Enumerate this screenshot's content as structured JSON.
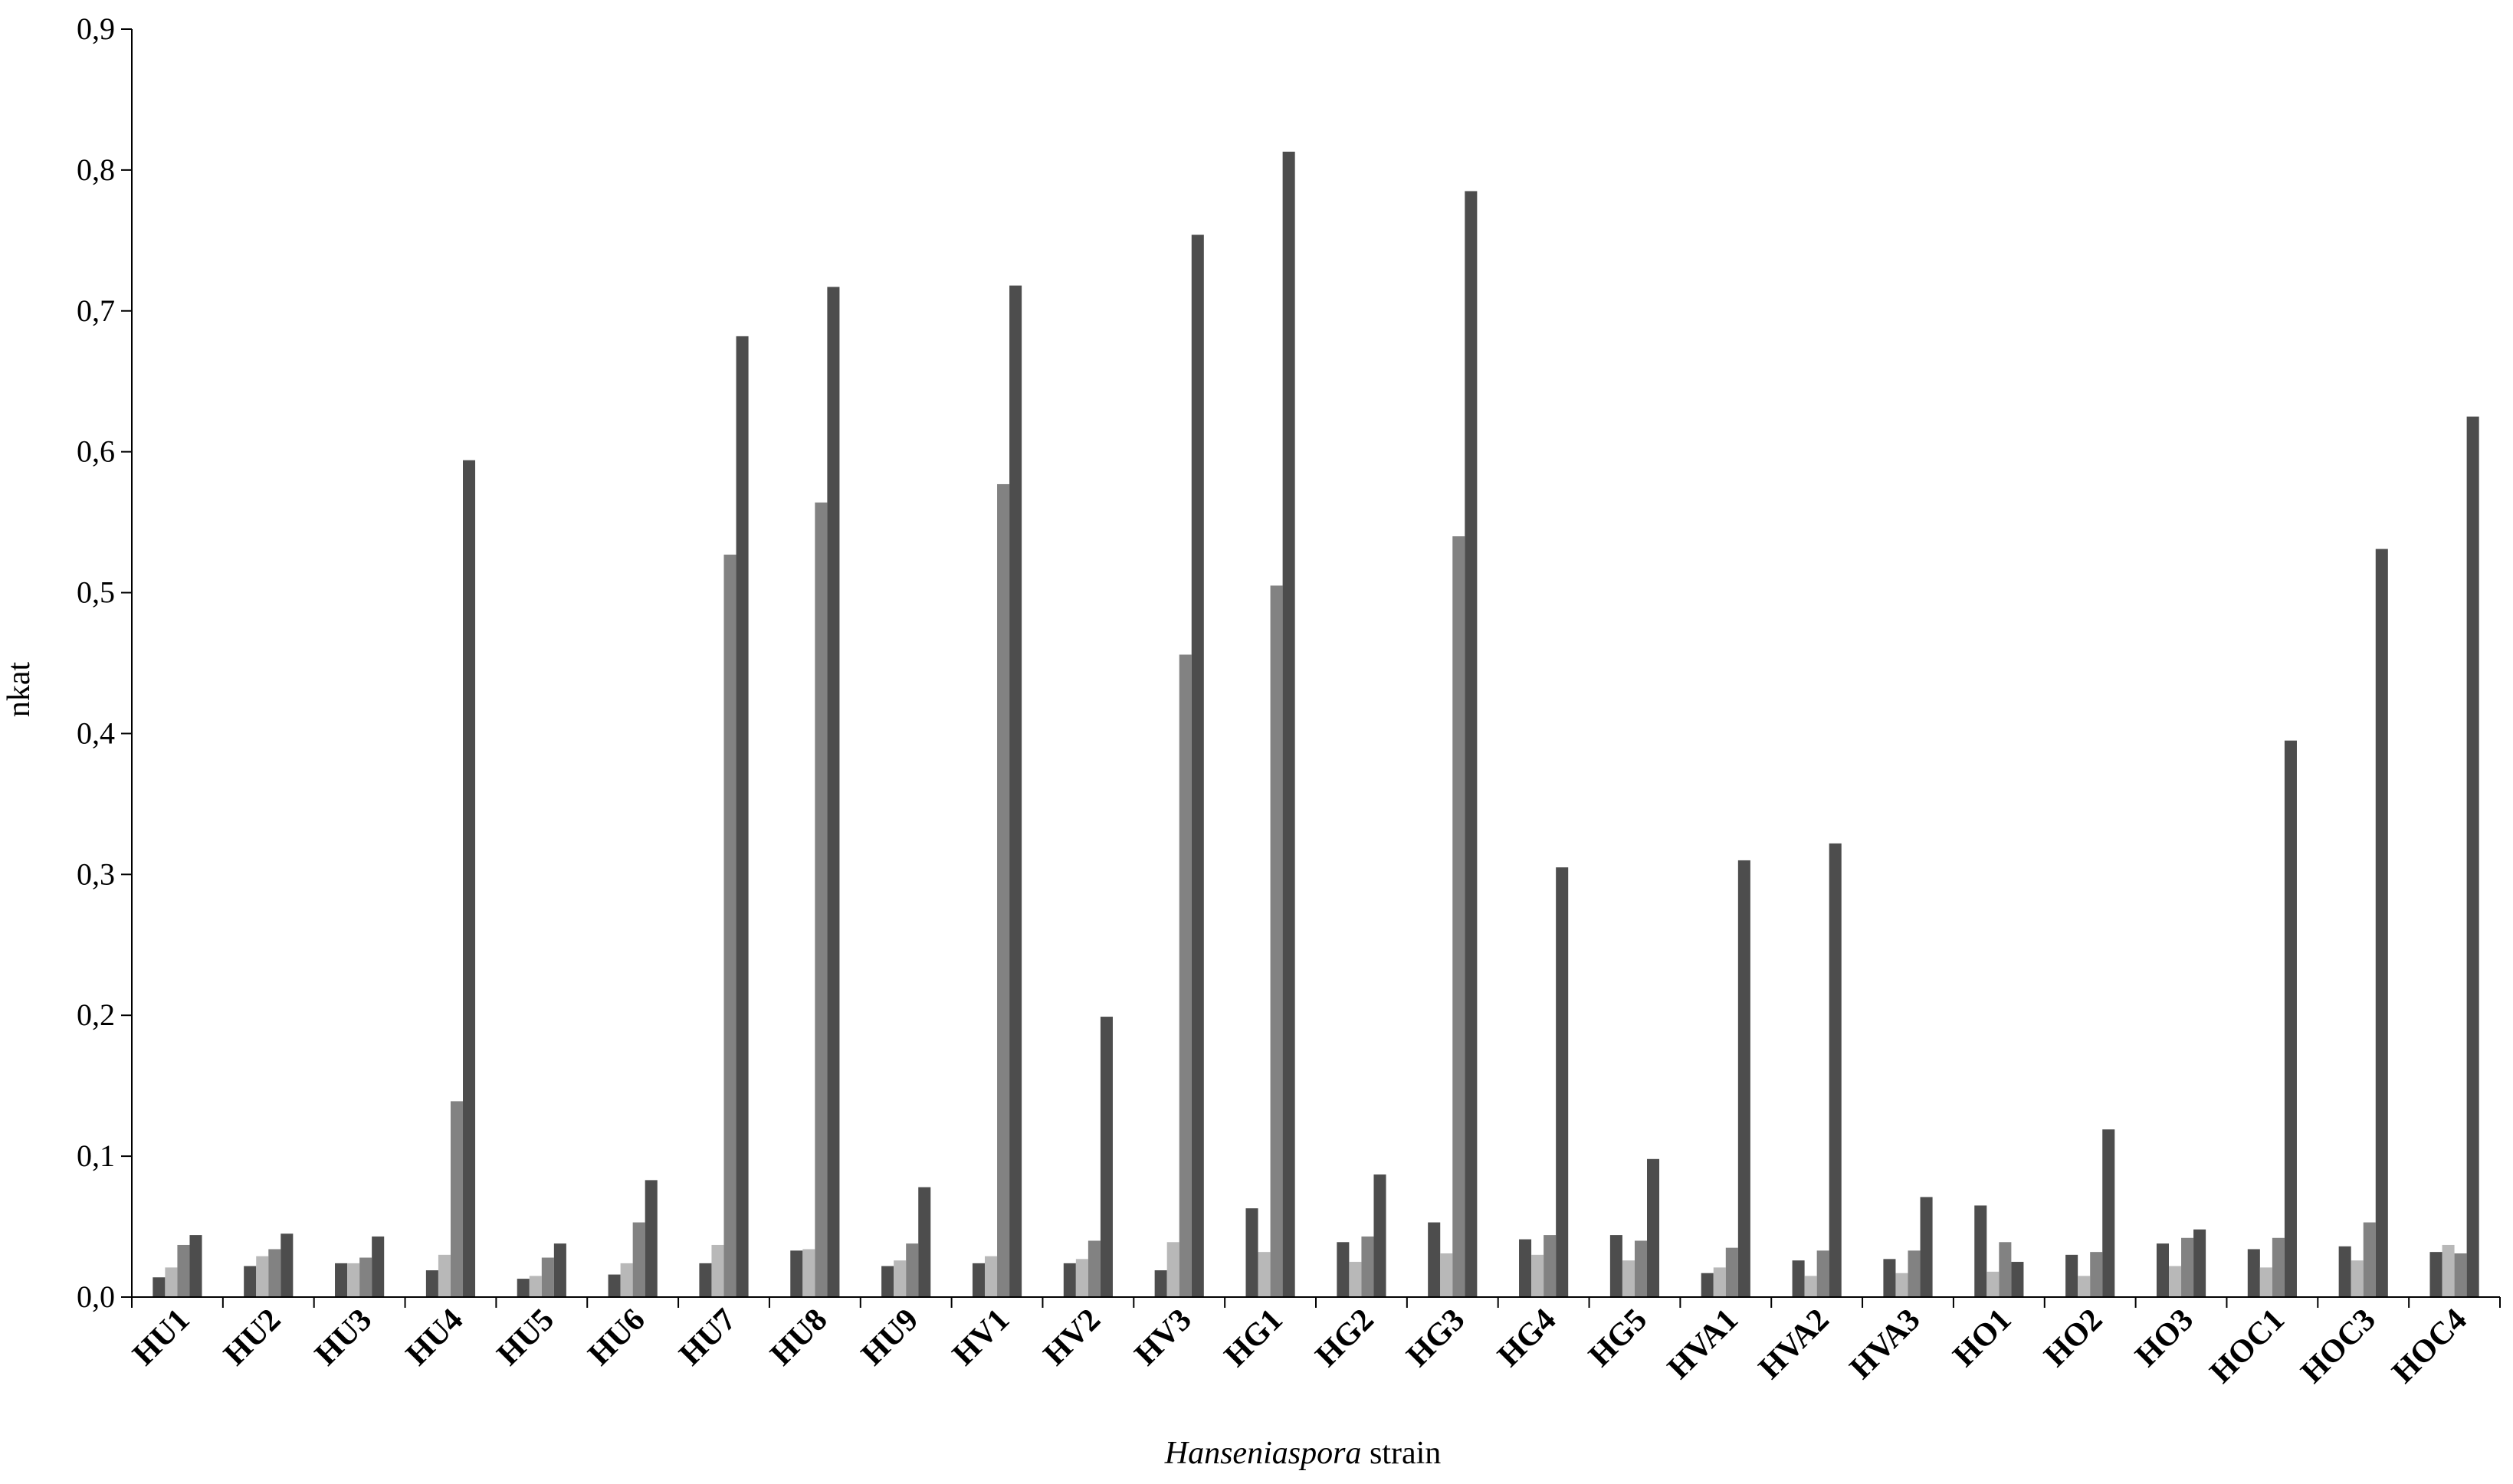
{
  "chart_data": {
    "type": "bar",
    "ylabel": "nkat",
    "xlabel_italic": "Hanseniaspora",
    "xlabel_rest": " strain",
    "ylim": [
      0,
      0.9
    ],
    "yticks": [
      "0,0",
      "0,1",
      "0,2",
      "0,3",
      "0,4",
      "0,5",
      "0,6",
      "0,7",
      "0,8",
      "0,9"
    ],
    "grid": false,
    "categories": [
      "HU1",
      "HU2",
      "HU3",
      "HU4",
      "HU5",
      "HU6",
      "HU7",
      "HU8",
      "HU9",
      "HV1",
      "HV2",
      "HV3",
      "HG1",
      "HG2",
      "HG3",
      "HG4",
      "HG5",
      "HVA1",
      "HVA2",
      "HVA3",
      "HO1",
      "HO2",
      "HO3",
      "HOC1",
      "HOC3",
      "HOC4"
    ],
    "series": [
      {
        "color": "#4d4d4d",
        "values": [
          0.014,
          0.022,
          0.024,
          0.019,
          0.013,
          0.016,
          0.024,
          0.033,
          0.022,
          0.024,
          0.024,
          0.019,
          0.063,
          0.039,
          0.053,
          0.041,
          0.044,
          0.017,
          0.026,
          0.027,
          0.065,
          0.03,
          0.038,
          0.034,
          0.036,
          0.032
        ]
      },
      {
        "color": "#b8b8b8",
        "values": [
          0.021,
          0.029,
          0.024,
          0.03,
          0.015,
          0.024,
          0.037,
          0.034,
          0.026,
          0.029,
          0.027,
          0.039,
          0.032,
          0.025,
          0.031,
          0.03,
          0.026,
          0.021,
          0.015,
          0.017,
          0.018,
          0.015,
          0.022,
          0.021,
          0.026,
          0.037
        ]
      },
      {
        "color": "#828282",
        "values": [
          0.037,
          0.034,
          0.028,
          0.139,
          0.028,
          0.053,
          0.527,
          0.564,
          0.038,
          0.577,
          0.04,
          0.456,
          0.505,
          0.043,
          0.54,
          0.044,
          0.04,
          0.035,
          0.033,
          0.033,
          0.039,
          0.032,
          0.042,
          0.042,
          0.053,
          0.031
        ]
      },
      {
        "color": "#4d4d4d",
        "values": [
          0.044,
          0.045,
          0.043,
          0.594,
          0.038,
          0.083,
          0.682,
          0.717,
          0.078,
          0.718,
          0.199,
          0.754,
          0.813,
          0.087,
          0.785,
          0.305,
          0.098,
          0.31,
          0.322,
          0.071,
          0.025,
          0.119,
          0.048,
          0.395,
          0.531,
          0.625
        ]
      }
    ]
  }
}
